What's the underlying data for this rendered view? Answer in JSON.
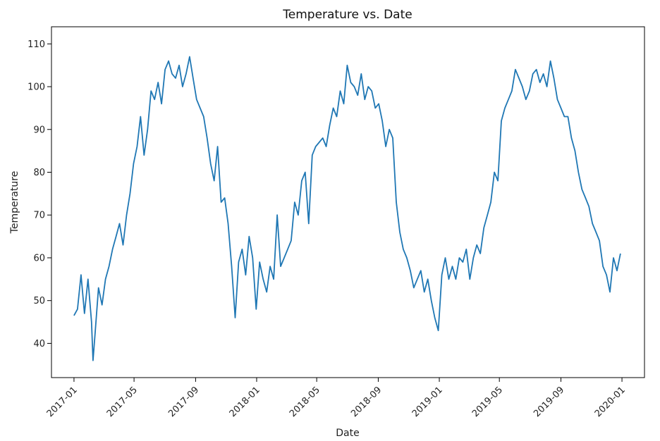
{
  "chart_data": {
    "type": "line",
    "title": "Temperature vs. Date",
    "xlabel": "Date",
    "ylabel": "Temperature",
    "x_ticks": [
      "2017-01",
      "2017-05",
      "2017-09",
      "2018-01",
      "2018-05",
      "2018-09",
      "2019-01",
      "2019-05",
      "2019-09",
      "2020-01"
    ],
    "y_ticks": [
      40,
      50,
      60,
      70,
      80,
      90,
      100,
      110
    ],
    "xlim": [
      "2016-11-17",
      "2020-02-15"
    ],
    "ylim": [
      32,
      114
    ],
    "grid": false,
    "legend": "none",
    "series": [
      {
        "color": "#1f77b4",
        "x": [
          "2017-01-01",
          "2017-01-08",
          "2017-01-15",
          "2017-01-22",
          "2017-01-29",
          "2017-02-05",
          "2017-02-08",
          "2017-02-12",
          "2017-02-19",
          "2017-02-26",
          "2017-03-05",
          "2017-03-12",
          "2017-03-19",
          "2017-03-26",
          "2017-04-02",
          "2017-04-09",
          "2017-04-16",
          "2017-04-23",
          "2017-04-30",
          "2017-05-07",
          "2017-05-14",
          "2017-05-21",
          "2017-05-28",
          "2017-06-04",
          "2017-06-11",
          "2017-06-18",
          "2017-06-25",
          "2017-07-02",
          "2017-07-09",
          "2017-07-16",
          "2017-07-23",
          "2017-07-30",
          "2017-08-06",
          "2017-08-13",
          "2017-08-20",
          "2017-08-27",
          "2017-09-03",
          "2017-09-10",
          "2017-09-17",
          "2017-09-24",
          "2017-10-01",
          "2017-10-08",
          "2017-10-15",
          "2017-10-22",
          "2017-10-29",
          "2017-11-05",
          "2017-11-12",
          "2017-11-19",
          "2017-11-26",
          "2017-12-03",
          "2017-12-10",
          "2017-12-17",
          "2017-12-24",
          "2017-12-31",
          "2018-01-07",
          "2018-01-14",
          "2018-01-21",
          "2018-01-28",
          "2018-02-04",
          "2018-02-11",
          "2018-02-18",
          "2018-02-25",
          "2018-03-04",
          "2018-03-11",
          "2018-03-18",
          "2018-03-25",
          "2018-04-01",
          "2018-04-08",
          "2018-04-15",
          "2018-04-22",
          "2018-04-29",
          "2018-05-06",
          "2018-05-13",
          "2018-05-20",
          "2018-05-27",
          "2018-06-03",
          "2018-06-10",
          "2018-06-17",
          "2018-06-24",
          "2018-07-01",
          "2018-07-08",
          "2018-07-15",
          "2018-07-22",
          "2018-07-29",
          "2018-08-05",
          "2018-08-12",
          "2018-08-19",
          "2018-08-26",
          "2018-09-02",
          "2018-09-09",
          "2018-09-16",
          "2018-09-23",
          "2018-09-30",
          "2018-10-07",
          "2018-10-14",
          "2018-10-21",
          "2018-10-28",
          "2018-11-04",
          "2018-11-11",
          "2018-11-18",
          "2018-11-25",
          "2018-12-02",
          "2018-12-09",
          "2018-12-16",
          "2018-12-23",
          "2018-12-30",
          "2019-01-06",
          "2019-01-13",
          "2019-01-20",
          "2019-01-27",
          "2019-02-03",
          "2019-02-10",
          "2019-02-17",
          "2019-02-24",
          "2019-03-03",
          "2019-03-10",
          "2019-03-17",
          "2019-03-24",
          "2019-03-31",
          "2019-04-07",
          "2019-04-14",
          "2019-04-21",
          "2019-04-28",
          "2019-05-05",
          "2019-05-12",
          "2019-05-19",
          "2019-05-26",
          "2019-06-02",
          "2019-06-09",
          "2019-06-16",
          "2019-06-23",
          "2019-06-30",
          "2019-07-07",
          "2019-07-14",
          "2019-07-21",
          "2019-07-28",
          "2019-08-04",
          "2019-08-11",
          "2019-08-18",
          "2019-08-25",
          "2019-09-01",
          "2019-09-08",
          "2019-09-15",
          "2019-09-22",
          "2019-09-29",
          "2019-10-06",
          "2019-10-13",
          "2019-10-20",
          "2019-10-27",
          "2019-11-03",
          "2019-11-10",
          "2019-11-17",
          "2019-11-24",
          "2019-12-01",
          "2019-12-08",
          "2019-12-15",
          "2019-12-22",
          "2019-12-29"
        ],
        "y": [
          46.5,
          48,
          56,
          47,
          55,
          45,
          36,
          42,
          53,
          49,
          55,
          58,
          62,
          65,
          68,
          63,
          70,
          75,
          82,
          86,
          93,
          84,
          90,
          99,
          97,
          101,
          96,
          104,
          106,
          103,
          102,
          105,
          100,
          103,
          107,
          102,
          97,
          95,
          93,
          88,
          82,
          78,
          86,
          73,
          74,
          68,
          58,
          46,
          59,
          62,
          56,
          65,
          60,
          48,
          59,
          55,
          52,
          58,
          55,
          70,
          58,
          60,
          62,
          64,
          73,
          70,
          78,
          80,
          68,
          84,
          86,
          87,
          88,
          86,
          91,
          95,
          93,
          99,
          96,
          105,
          101,
          100,
          98,
          103,
          97,
          100,
          99,
          95,
          96,
          92,
          86,
          90,
          88,
          73,
          66,
          62,
          60,
          57,
          53,
          55,
          57,
          52,
          55,
          50,
          46,
          43,
          56,
          60,
          55,
          58,
          55,
          60,
          59,
          62,
          55,
          60,
          63,
          61,
          67,
          70,
          73,
          80,
          78,
          92,
          95,
          97,
          99,
          104,
          102,
          100,
          97,
          99,
          103,
          104,
          101,
          103,
          100,
          106,
          102,
          97,
          95,
          93,
          93,
          88,
          85,
          80,
          76,
          74,
          72,
          68,
          66,
          64,
          58,
          56,
          52,
          60,
          57,
          61
        ]
      }
    ]
  }
}
